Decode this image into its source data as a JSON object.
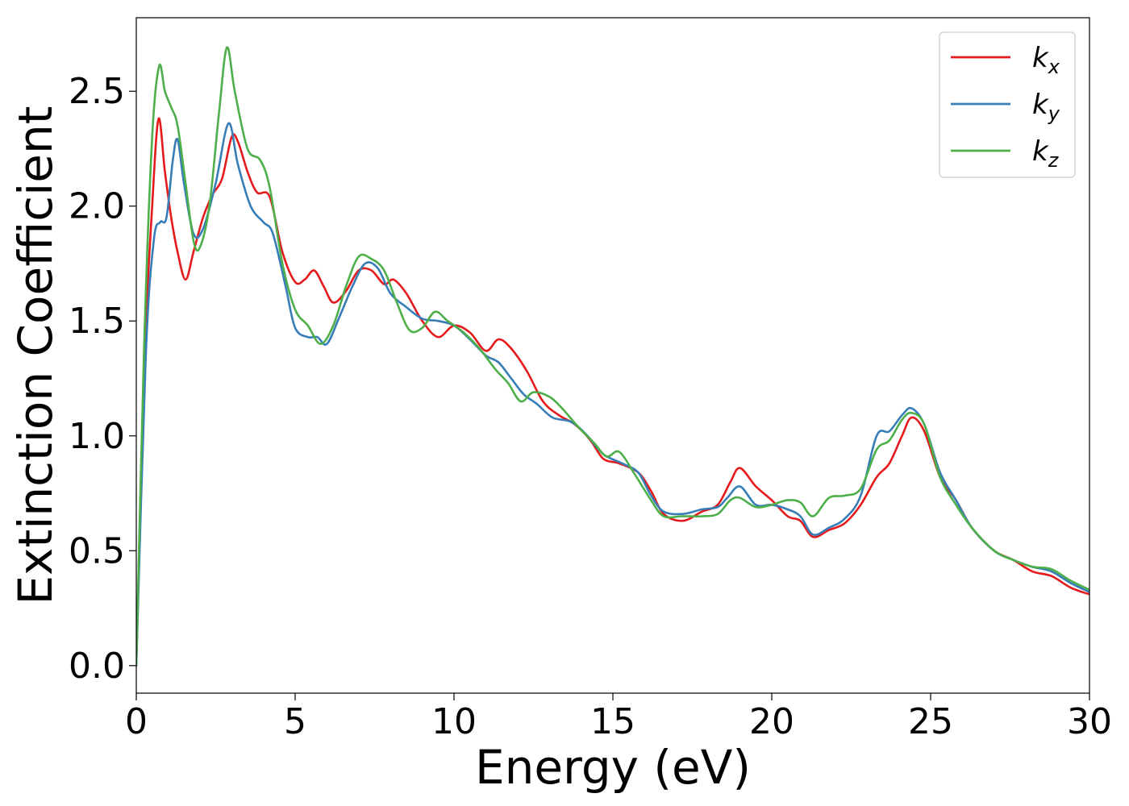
{
  "chart_data": {
    "type": "line",
    "xlabel": "Energy (eV)",
    "ylabel": "Extinction Coefficient",
    "xlim": [
      0,
      30
    ],
    "ylim": [
      -0.12,
      2.82
    ],
    "xticks": [
      0,
      5,
      10,
      15,
      20,
      25,
      30
    ],
    "yticks": [
      0.0,
      0.5,
      1.0,
      1.5,
      2.0,
      2.5
    ],
    "xtick_labels": [
      "0",
      "5",
      "10",
      "15",
      "20",
      "25",
      "30"
    ],
    "ytick_labels": [
      "0.0",
      "0.5",
      "1.0",
      "1.5",
      "2.0",
      "2.5"
    ],
    "grid": false,
    "legend_position": "top-right",
    "series": [
      {
        "name": "k_x",
        "base": "k",
        "sub": "x",
        "color": "#e41a1c",
        "points": [
          [
            0,
            0.0
          ],
          [
            0.25,
            1.3
          ],
          [
            0.5,
            2.0
          ],
          [
            0.7,
            2.38
          ],
          [
            0.9,
            2.15
          ],
          [
            1.1,
            1.95
          ],
          [
            1.3,
            1.8
          ],
          [
            1.55,
            1.68
          ],
          [
            1.8,
            1.8
          ],
          [
            2.1,
            1.95
          ],
          [
            2.4,
            2.05
          ],
          [
            2.7,
            2.12
          ],
          [
            3.0,
            2.3
          ],
          [
            3.2,
            2.28
          ],
          [
            3.5,
            2.15
          ],
          [
            3.8,
            2.06
          ],
          [
            4.2,
            2.04
          ],
          [
            4.6,
            1.8
          ],
          [
            5.0,
            1.67
          ],
          [
            5.3,
            1.68
          ],
          [
            5.6,
            1.72
          ],
          [
            5.9,
            1.65
          ],
          [
            6.2,
            1.58
          ],
          [
            6.6,
            1.63
          ],
          [
            7.0,
            1.72
          ],
          [
            7.4,
            1.72
          ],
          [
            7.8,
            1.66
          ],
          [
            8.1,
            1.68
          ],
          [
            8.5,
            1.62
          ],
          [
            9.0,
            1.5
          ],
          [
            9.5,
            1.43
          ],
          [
            10.0,
            1.48
          ],
          [
            10.5,
            1.45
          ],
          [
            11.0,
            1.37
          ],
          [
            11.4,
            1.42
          ],
          [
            11.8,
            1.38
          ],
          [
            12.3,
            1.28
          ],
          [
            12.8,
            1.15
          ],
          [
            13.3,
            1.09
          ],
          [
            13.8,
            1.05
          ],
          [
            14.3,
            0.98
          ],
          [
            14.7,
            0.9
          ],
          [
            15.2,
            0.88
          ],
          [
            15.8,
            0.84
          ],
          [
            16.2,
            0.76
          ],
          [
            16.6,
            0.66
          ],
          [
            17.2,
            0.63
          ],
          [
            17.8,
            0.67
          ],
          [
            18.3,
            0.7
          ],
          [
            18.7,
            0.8
          ],
          [
            19.0,
            0.86
          ],
          [
            19.5,
            0.78
          ],
          [
            20.0,
            0.72
          ],
          [
            20.5,
            0.65
          ],
          [
            20.9,
            0.63
          ],
          [
            21.3,
            0.56
          ],
          [
            21.8,
            0.59
          ],
          [
            22.3,
            0.62
          ],
          [
            22.8,
            0.7
          ],
          [
            23.3,
            0.82
          ],
          [
            23.7,
            0.88
          ],
          [
            24.1,
            1.0
          ],
          [
            24.4,
            1.08
          ],
          [
            24.8,
            1.02
          ],
          [
            25.3,
            0.82
          ],
          [
            25.8,
            0.72
          ],
          [
            26.3,
            0.6
          ],
          [
            27.0,
            0.5
          ],
          [
            27.6,
            0.46
          ],
          [
            28.2,
            0.41
          ],
          [
            28.8,
            0.39
          ],
          [
            29.4,
            0.34
          ],
          [
            30.0,
            0.31
          ]
        ]
      },
      {
        "name": "k_y",
        "base": "k",
        "sub": "y",
        "color": "#377eb8",
        "points": [
          [
            0,
            0.0
          ],
          [
            0.3,
            1.35
          ],
          [
            0.55,
            1.85
          ],
          [
            0.75,
            1.93
          ],
          [
            0.95,
            1.95
          ],
          [
            1.15,
            2.2
          ],
          [
            1.3,
            2.29
          ],
          [
            1.5,
            2.1
          ],
          [
            1.8,
            1.88
          ],
          [
            2.1,
            1.9
          ],
          [
            2.5,
            2.1
          ],
          [
            2.9,
            2.36
          ],
          [
            3.2,
            2.18
          ],
          [
            3.6,
            2.0
          ],
          [
            4.0,
            1.93
          ],
          [
            4.3,
            1.88
          ],
          [
            4.7,
            1.65
          ],
          [
            5.0,
            1.47
          ],
          [
            5.4,
            1.43
          ],
          [
            5.7,
            1.43
          ],
          [
            6.0,
            1.4
          ],
          [
            6.4,
            1.52
          ],
          [
            6.8,
            1.65
          ],
          [
            7.2,
            1.75
          ],
          [
            7.6,
            1.73
          ],
          [
            8.0,
            1.62
          ],
          [
            8.5,
            1.56
          ],
          [
            9.0,
            1.51
          ],
          [
            9.5,
            1.5
          ],
          [
            10.0,
            1.48
          ],
          [
            10.5,
            1.42
          ],
          [
            11.0,
            1.35
          ],
          [
            11.4,
            1.32
          ],
          [
            11.8,
            1.25
          ],
          [
            12.2,
            1.18
          ],
          [
            12.6,
            1.14
          ],
          [
            13.1,
            1.08
          ],
          [
            13.7,
            1.06
          ],
          [
            14.2,
            1.0
          ],
          [
            14.7,
            0.92
          ],
          [
            15.3,
            0.88
          ],
          [
            15.8,
            0.84
          ],
          [
            16.2,
            0.74
          ],
          [
            16.6,
            0.67
          ],
          [
            17.2,
            0.66
          ],
          [
            17.8,
            0.68
          ],
          [
            18.3,
            0.69
          ],
          [
            18.6,
            0.73
          ],
          [
            19.0,
            0.78
          ],
          [
            19.5,
            0.7
          ],
          [
            20.0,
            0.7
          ],
          [
            20.5,
            0.68
          ],
          [
            20.9,
            0.65
          ],
          [
            21.3,
            0.57
          ],
          [
            21.8,
            0.6
          ],
          [
            22.3,
            0.64
          ],
          [
            22.8,
            0.74
          ],
          [
            23.3,
            1.0
          ],
          [
            23.7,
            1.02
          ],
          [
            24.1,
            1.09
          ],
          [
            24.4,
            1.12
          ],
          [
            24.8,
            1.05
          ],
          [
            25.3,
            0.84
          ],
          [
            25.8,
            0.72
          ],
          [
            26.3,
            0.6
          ],
          [
            27.0,
            0.5
          ],
          [
            27.6,
            0.46
          ],
          [
            28.2,
            0.43
          ],
          [
            28.8,
            0.41
          ],
          [
            29.4,
            0.36
          ],
          [
            30.0,
            0.32
          ]
        ]
      },
      {
        "name": "k_z",
        "base": "k",
        "sub": "z",
        "color": "#4daf4a",
        "points": [
          [
            0,
            0.0
          ],
          [
            0.25,
            1.4
          ],
          [
            0.5,
            2.3
          ],
          [
            0.72,
            2.61
          ],
          [
            0.9,
            2.5
          ],
          [
            1.1,
            2.43
          ],
          [
            1.3,
            2.35
          ],
          [
            1.55,
            2.1
          ],
          [
            1.8,
            1.85
          ],
          [
            2.0,
            1.82
          ],
          [
            2.3,
            2.0
          ],
          [
            2.6,
            2.4
          ],
          [
            2.85,
            2.69
          ],
          [
            3.1,
            2.5
          ],
          [
            3.5,
            2.25
          ],
          [
            3.9,
            2.2
          ],
          [
            4.2,
            2.08
          ],
          [
            4.6,
            1.75
          ],
          [
            5.0,
            1.55
          ],
          [
            5.4,
            1.48
          ],
          [
            5.8,
            1.4
          ],
          [
            6.2,
            1.48
          ],
          [
            6.6,
            1.65
          ],
          [
            7.0,
            1.78
          ],
          [
            7.4,
            1.77
          ],
          [
            7.8,
            1.72
          ],
          [
            8.2,
            1.58
          ],
          [
            8.6,
            1.46
          ],
          [
            9.0,
            1.47
          ],
          [
            9.4,
            1.54
          ],
          [
            9.8,
            1.5
          ],
          [
            10.3,
            1.45
          ],
          [
            10.8,
            1.38
          ],
          [
            11.3,
            1.29
          ],
          [
            11.7,
            1.23
          ],
          [
            12.1,
            1.15
          ],
          [
            12.5,
            1.19
          ],
          [
            13.0,
            1.17
          ],
          [
            13.4,
            1.12
          ],
          [
            13.9,
            1.04
          ],
          [
            14.4,
            0.97
          ],
          [
            14.8,
            0.91
          ],
          [
            15.2,
            0.93
          ],
          [
            15.7,
            0.83
          ],
          [
            16.2,
            0.72
          ],
          [
            16.6,
            0.65
          ],
          [
            17.2,
            0.65
          ],
          [
            17.8,
            0.65
          ],
          [
            18.3,
            0.66
          ],
          [
            18.7,
            0.72
          ],
          [
            19.0,
            0.73
          ],
          [
            19.5,
            0.69
          ],
          [
            20.0,
            0.7
          ],
          [
            20.5,
            0.72
          ],
          [
            20.9,
            0.71
          ],
          [
            21.3,
            0.65
          ],
          [
            21.8,
            0.73
          ],
          [
            22.3,
            0.74
          ],
          [
            22.8,
            0.77
          ],
          [
            23.3,
            0.94
          ],
          [
            23.7,
            0.98
          ],
          [
            24.1,
            1.07
          ],
          [
            24.4,
            1.1
          ],
          [
            24.8,
            1.05
          ],
          [
            25.3,
            0.82
          ],
          [
            25.8,
            0.7
          ],
          [
            26.3,
            0.6
          ],
          [
            27.0,
            0.5
          ],
          [
            27.6,
            0.46
          ],
          [
            28.2,
            0.43
          ],
          [
            28.8,
            0.42
          ],
          [
            29.4,
            0.37
          ],
          [
            30.0,
            0.33
          ]
        ]
      }
    ]
  }
}
